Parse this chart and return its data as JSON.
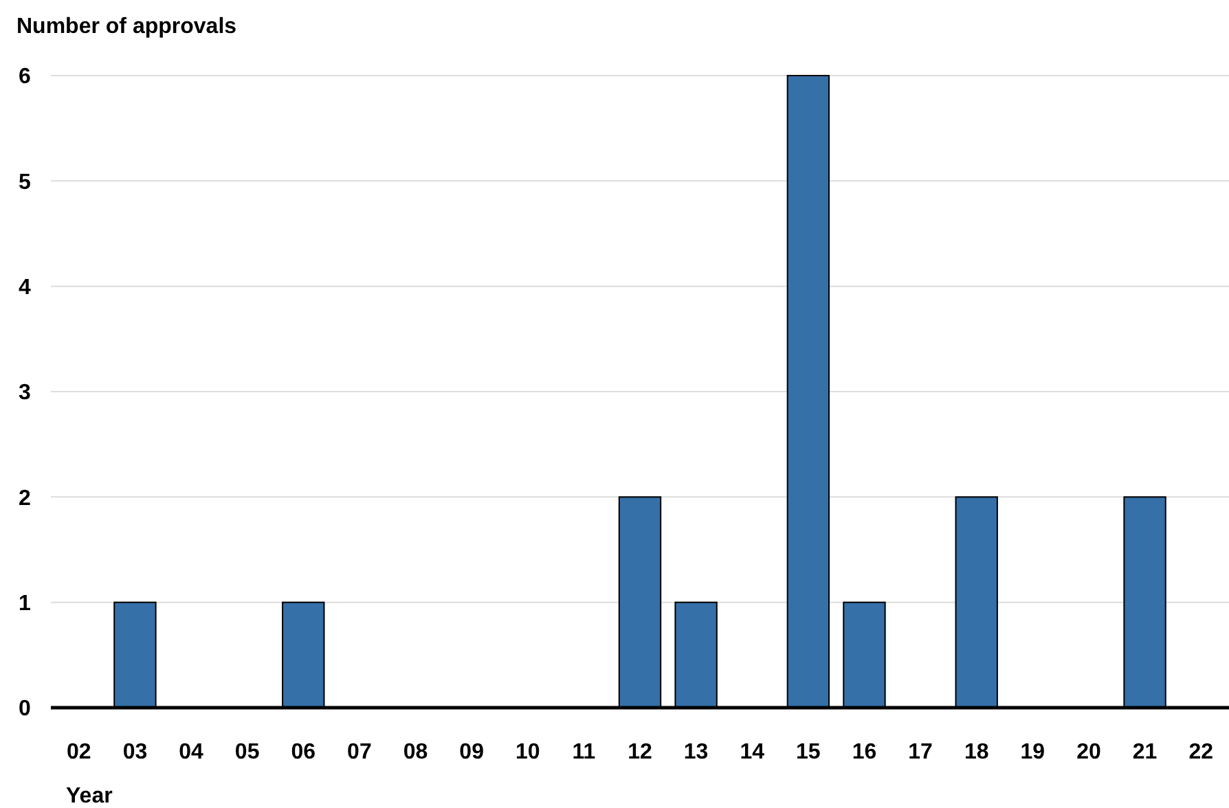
{
  "chart_data": {
    "type": "bar",
    "ylabel": "Number of approvals",
    "xlabel": "Year",
    "categories": [
      "02",
      "03",
      "04",
      "05",
      "06",
      "07",
      "08",
      "09",
      "10",
      "11",
      "12",
      "13",
      "14",
      "15",
      "16",
      "17",
      "18",
      "19",
      "20",
      "21",
      "22"
    ],
    "values": [
      0,
      1,
      0,
      0,
      1,
      0,
      0,
      0,
      0,
      0,
      2,
      1,
      0,
      6,
      1,
      0,
      2,
      0,
      0,
      2,
      0
    ],
    "color": "#3570a8",
    "ylim": [
      0,
      6
    ],
    "yticks": [
      0,
      1,
      2,
      3,
      4,
      5,
      6
    ],
    "grid": "y"
  }
}
